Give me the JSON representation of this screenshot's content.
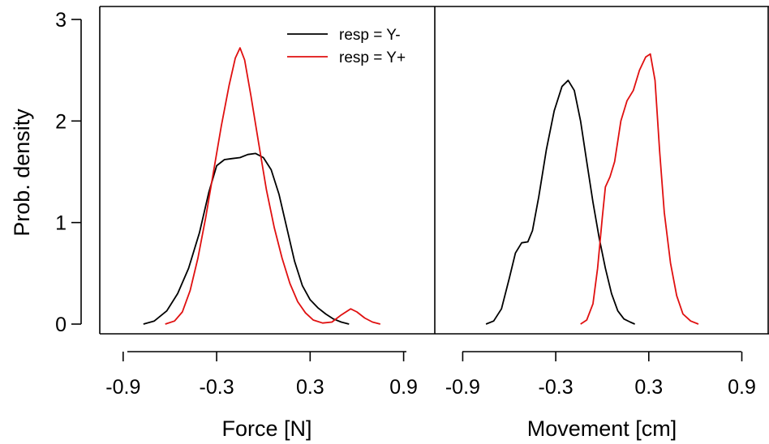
{
  "chart_data": [
    {
      "type": "line",
      "panel": "left",
      "xlabel": "Force [N]",
      "ylabel": "Prob. density",
      "xlim": [
        -1.05,
        1.1
      ],
      "ylim": [
        0,
        3
      ],
      "xticks": [
        -0.9,
        -0.3,
        0.3,
        0.9
      ],
      "xtick_labels": [
        "-0.9",
        "-0.3",
        "0.3",
        "0.9"
      ],
      "yticks": [
        0,
        1,
        2,
        3
      ],
      "ytick_labels": [
        "0",
        "1",
        "2",
        "3"
      ],
      "legend": {
        "position": "top-right",
        "entries": [
          "resp = Y-",
          "resp = Y+"
        ]
      },
      "series": [
        {
          "name": "resp = Y-",
          "color": "#000000",
          "points": [
            [
              -0.77,
              0.0
            ],
            [
              -0.7,
              0.03
            ],
            [
              -0.62,
              0.13
            ],
            [
              -0.55,
              0.3
            ],
            [
              -0.48,
              0.55
            ],
            [
              -0.41,
              0.9
            ],
            [
              -0.35,
              1.3
            ],
            [
              -0.3,
              1.56
            ],
            [
              -0.25,
              1.62
            ],
            [
              -0.2,
              1.63
            ],
            [
              -0.15,
              1.64
            ],
            [
              -0.1,
              1.67
            ],
            [
              -0.05,
              1.68
            ],
            [
              0.0,
              1.64
            ],
            [
              0.05,
              1.52
            ],
            [
              0.1,
              1.28
            ],
            [
              0.15,
              0.95
            ],
            [
              0.2,
              0.62
            ],
            [
              0.25,
              0.38
            ],
            [
              0.3,
              0.24
            ],
            [
              0.35,
              0.16
            ],
            [
              0.4,
              0.1
            ],
            [
              0.45,
              0.05
            ],
            [
              0.5,
              0.02
            ],
            [
              0.55,
              0.0
            ]
          ]
        },
        {
          "name": "resp = Y+",
          "color": "#e01010",
          "points": [
            [
              -0.63,
              0.0
            ],
            [
              -0.57,
              0.03
            ],
            [
              -0.52,
              0.12
            ],
            [
              -0.47,
              0.33
            ],
            [
              -0.42,
              0.65
            ],
            [
              -0.37,
              1.05
            ],
            [
              -0.32,
              1.5
            ],
            [
              -0.27,
              1.95
            ],
            [
              -0.22,
              2.35
            ],
            [
              -0.18,
              2.62
            ],
            [
              -0.15,
              2.72
            ],
            [
              -0.12,
              2.6
            ],
            [
              -0.08,
              2.25
            ],
            [
              -0.03,
              1.78
            ],
            [
              0.02,
              1.32
            ],
            [
              0.07,
              0.95
            ],
            [
              0.12,
              0.65
            ],
            [
              0.17,
              0.4
            ],
            [
              0.22,
              0.22
            ],
            [
              0.27,
              0.11
            ],
            [
              0.32,
              0.04
            ],
            [
              0.38,
              0.01
            ],
            [
              0.44,
              0.02
            ],
            [
              0.5,
              0.09
            ],
            [
              0.56,
              0.15
            ],
            [
              0.6,
              0.12
            ],
            [
              0.65,
              0.06
            ],
            [
              0.7,
              0.02
            ],
            [
              0.75,
              0.0
            ]
          ]
        }
      ]
    },
    {
      "type": "line",
      "panel": "right",
      "xlabel": "Movement [cm]",
      "xlim": [
        -1.08,
        1.07
      ],
      "ylim": [
        0,
        3
      ],
      "xticks": [
        -0.9,
        -0.3,
        0.3,
        0.9
      ],
      "xtick_labels": [
        "-0.9",
        "-0.3",
        "0.3",
        "0.9"
      ],
      "series": [
        {
          "name": "resp = Y-",
          "color": "#000000",
          "points": [
            [
              -0.75,
              0.0
            ],
            [
              -0.7,
              0.03
            ],
            [
              -0.65,
              0.15
            ],
            [
              -0.6,
              0.45
            ],
            [
              -0.56,
              0.7
            ],
            [
              -0.52,
              0.8
            ],
            [
              -0.48,
              0.81
            ],
            [
              -0.45,
              0.92
            ],
            [
              -0.41,
              1.25
            ],
            [
              -0.36,
              1.72
            ],
            [
              -0.31,
              2.1
            ],
            [
              -0.26,
              2.34
            ],
            [
              -0.22,
              2.4
            ],
            [
              -0.18,
              2.3
            ],
            [
              -0.14,
              2.0
            ],
            [
              -0.1,
              1.6
            ],
            [
              -0.06,
              1.2
            ],
            [
              -0.02,
              0.85
            ],
            [
              0.02,
              0.55
            ],
            [
              0.06,
              0.3
            ],
            [
              0.1,
              0.13
            ],
            [
              0.14,
              0.05
            ],
            [
              0.18,
              0.02
            ],
            [
              0.21,
              0.0
            ]
          ]
        },
        {
          "name": "resp = Y+",
          "color": "#e01010",
          "points": [
            [
              -0.14,
              0.0
            ],
            [
              -0.1,
              0.04
            ],
            [
              -0.06,
              0.2
            ],
            [
              -0.03,
              0.55
            ],
            [
              0.0,
              1.05
            ],
            [
              0.02,
              1.35
            ],
            [
              0.05,
              1.45
            ],
            [
              0.08,
              1.6
            ],
            [
              0.12,
              2.0
            ],
            [
              0.16,
              2.2
            ],
            [
              0.2,
              2.3
            ],
            [
              0.24,
              2.5
            ],
            [
              0.28,
              2.63
            ],
            [
              0.31,
              2.66
            ],
            [
              0.34,
              2.4
            ],
            [
              0.37,
              1.7
            ],
            [
              0.4,
              1.1
            ],
            [
              0.44,
              0.6
            ],
            [
              0.48,
              0.28
            ],
            [
              0.52,
              0.1
            ],
            [
              0.57,
              0.03
            ],
            [
              0.62,
              0.0
            ]
          ]
        }
      ]
    }
  ]
}
